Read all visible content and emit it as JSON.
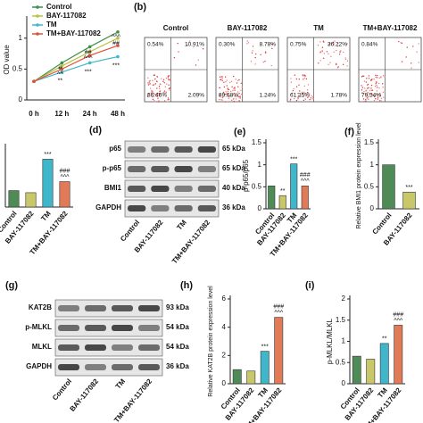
{
  "chart_data": [
    {
      "type": "line",
      "y_label": "OD value",
      "categories": [
        "0 h",
        "12 h",
        "24 h",
        "48 h"
      ],
      "series": [
        {
          "name": "Control",
          "color": "#3f8f4a",
          "values": [
            0.3,
            0.6,
            0.86,
            1.1
          ]
        },
        {
          "name": "BAY-117082",
          "color": "#b9c23a",
          "values": [
            0.3,
            0.55,
            0.78,
            1.0
          ]
        },
        {
          "name": "TM",
          "color": "#3fb6c9",
          "values": [
            0.3,
            0.45,
            0.6,
            0.7
          ]
        },
        {
          "name": "TM+BAY-117082",
          "color": "#e0503a",
          "values": [
            0.3,
            0.5,
            0.72,
            0.88
          ]
        }
      ],
      "annotations": [
        null,
        [
          "#",
          "^^",
          "**"
        ],
        [
          "##",
          "^^^",
          "***"
        ],
        [
          "^^^",
          "##",
          "***"
        ]
      ],
      "ylim": [
        0,
        1.3
      ],
      "yticks": [
        0,
        0.5,
        1.0
      ]
    },
    {
      "type": "bar",
      "categories": [
        "Control",
        "BAY-117082",
        "TM",
        "TM+BAY-117082"
      ],
      "values": [
        0.55,
        0.48,
        1.6,
        0.85
      ],
      "colors": [
        "#4e8b57",
        "#c8c86a",
        "#3fb6c9",
        "#e07a57"
      ],
      "annotations": [
        null,
        null,
        [
          "***"
        ],
        [
          "###",
          "^^^"
        ]
      ],
      "ylim": [
        0,
        2
      ]
    },
    {
      "type": "bar",
      "label": "(e)",
      "y_label": "p-p65/p65",
      "categories": [
        "Control",
        "BAY-117082",
        "TM",
        "TM+BAY-117082"
      ],
      "values": [
        0.52,
        0.3,
        1.02,
        0.52
      ],
      "colors": [
        "#4e8b57",
        "#c8c86a",
        "#3fb6c9",
        "#e07a57"
      ],
      "annotations": [
        null,
        [
          "**"
        ],
        [
          "***"
        ],
        [
          "###",
          "^^^"
        ]
      ],
      "ylim": [
        0,
        1.5
      ],
      "yticks": [
        0,
        0.5,
        1.0,
        1.5
      ]
    },
    {
      "type": "bar",
      "label": "(f)",
      "y_label": "Relative BMI1 protein expression level",
      "categories": [
        "Control",
        "BAY-117082"
      ],
      "values": [
        1.0,
        0.38
      ],
      "colors": [
        "#4e8b57",
        "#c8c86a"
      ],
      "annotations": [
        null,
        [
          "***"
        ]
      ],
      "ylim": [
        0,
        1.5
      ],
      "yticks": [
        0,
        0.5,
        1.0,
        1.5
      ]
    },
    {
      "type": "bar",
      "label": "(h)",
      "y_label": "Relative KAT2B protein expression level",
      "categories": [
        "Control",
        "BAY-117082",
        "TM",
        "TM+BAY-117082"
      ],
      "values": [
        1.0,
        0.9,
        2.3,
        4.7
      ],
      "colors": [
        "#4e8b57",
        "#c8c86a",
        "#3fb6c9",
        "#e07a57"
      ],
      "annotations": [
        null,
        null,
        [
          "***"
        ],
        [
          "###",
          "^^^"
        ]
      ],
      "ylim": [
        0,
        6
      ],
      "yticks": [
        0,
        2,
        4,
        6
      ]
    },
    {
      "type": "bar",
      "label": "(i)",
      "y_label": "p-MLKL/MLKL",
      "categories": [
        "Control",
        "BAY-117082",
        "TM",
        "TM+BAY-117082"
      ],
      "values": [
        0.65,
        0.58,
        0.95,
        1.38
      ],
      "colors": [
        "#4e8b57",
        "#c8c86a",
        "#3fb6c9",
        "#e07a57"
      ],
      "annotations": [
        null,
        null,
        [
          "**"
        ],
        [
          "###",
          "^^^"
        ]
      ],
      "ylim": [
        0,
        2.0
      ],
      "yticks": [
        0,
        0.5,
        1.0,
        1.5,
        2.0
      ]
    }
  ],
  "flow": {
    "label": "(b)",
    "panels": [
      {
        "title": "Control",
        "quadrants": [
          "0.54%",
          "10.91%",
          "86.46%",
          "2.09%"
        ]
      },
      {
        "title": "BAY-117082",
        "quadrants": [
          "0.30%",
          "8.78%",
          "89.68%",
          "1.24%"
        ]
      },
      {
        "title": "TM",
        "quadrants": [
          "0.75%",
          "36.22%",
          "61.25%",
          "1.78%"
        ]
      },
      {
        "title": "TM+BAY-117082",
        "quadrants": [
          "0.84%",
          null,
          "79.54%",
          null
        ]
      }
    ]
  },
  "blots": [
    {
      "label": "(d)",
      "lanes": [
        "Control",
        "BAY-117082",
        "TM",
        "TM+BAY-117082"
      ],
      "rows": [
        {
          "name": "p65",
          "kda": "65 kDa"
        },
        {
          "name": "p-p65",
          "kda": "65 kDa"
        },
        {
          "name": "BMI1",
          "kda": "40 kDa"
        },
        {
          "name": "GAPDH",
          "kda": "36 kDa"
        }
      ]
    },
    {
      "label": "(g)",
      "lanes": [
        "Control",
        "BAY-117082",
        "TM",
        "TM+BAY-117082"
      ],
      "rows": [
        {
          "name": "KAT2B",
          "kda": "93 kDa"
        },
        {
          "name": "p-MLKL",
          "kda": "54 kDa"
        },
        {
          "name": "MLKL",
          "kda": "54 kDa"
        },
        {
          "name": "GAPDH",
          "kda": "36 kDa"
        }
      ]
    }
  ]
}
